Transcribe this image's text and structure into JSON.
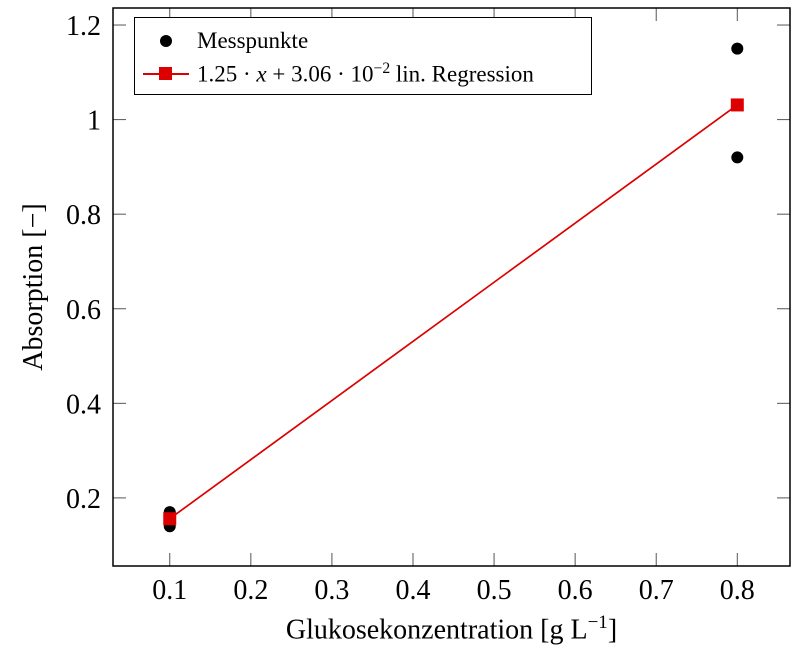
{
  "colors": {
    "background": "#ffffff",
    "frame": "#000000",
    "tick": "#555555",
    "points": "#000000",
    "regression": "#dd0000"
  },
  "axes": {
    "ylabel": "Absorption [−]",
    "xlabel_pre": "Glukosekonzentration [g L",
    "xlabel_sup": "−1",
    "xlabel_post": "]"
  },
  "legend": {
    "messpunkte_label": "Messpunkte",
    "regression_pre": "1.25 · ",
    "regression_x": "x",
    "regression_mid": " + 3.06 · 10",
    "regression_exp": "−2",
    "regression_suffix": " lin. Regression"
  },
  "chart_data": {
    "type": "scatter",
    "title": "",
    "xlabel": "Glukosekonzentration [g L−1]",
    "ylabel": "Absorption [−]",
    "xlim": [
      0.03,
      0.865
    ],
    "ylim": [
      0.056,
      1.236
    ],
    "grid": false,
    "legend_position": "top-left",
    "x_ticks": [
      0.1,
      0.2,
      0.3,
      0.4,
      0.5,
      0.6,
      0.7,
      0.8
    ],
    "x_tick_labels": [
      "0.1",
      "0.2",
      "0.3",
      "0.4",
      "0.5",
      "0.6",
      "0.7",
      "0.8"
    ],
    "y_ticks": [
      0.2,
      0.4,
      0.6,
      0.8,
      1.0,
      1.2
    ],
    "y_tick_labels": [
      "0.2",
      "0.4",
      "0.6",
      "0.8",
      "1",
      "1.2"
    ],
    "series": [
      {
        "name": "Messpunkte",
        "type": "scatter",
        "marker": "circle",
        "marker_color": "#000000",
        "points": [
          [
            0.1,
            0.17
          ],
          [
            0.1,
            0.14
          ],
          [
            0.8,
            1.15
          ],
          [
            0.8,
            0.92
          ]
        ]
      },
      {
        "name": "1.25 · x + 3.06 · 10−2 lin. Regression",
        "type": "line",
        "marker": "square",
        "color": "#dd0000",
        "slope": 1.25,
        "intercept": 0.0306,
        "points": [
          [
            0.1,
            0.156
          ],
          [
            0.8,
            1.031
          ]
        ]
      }
    ]
  }
}
